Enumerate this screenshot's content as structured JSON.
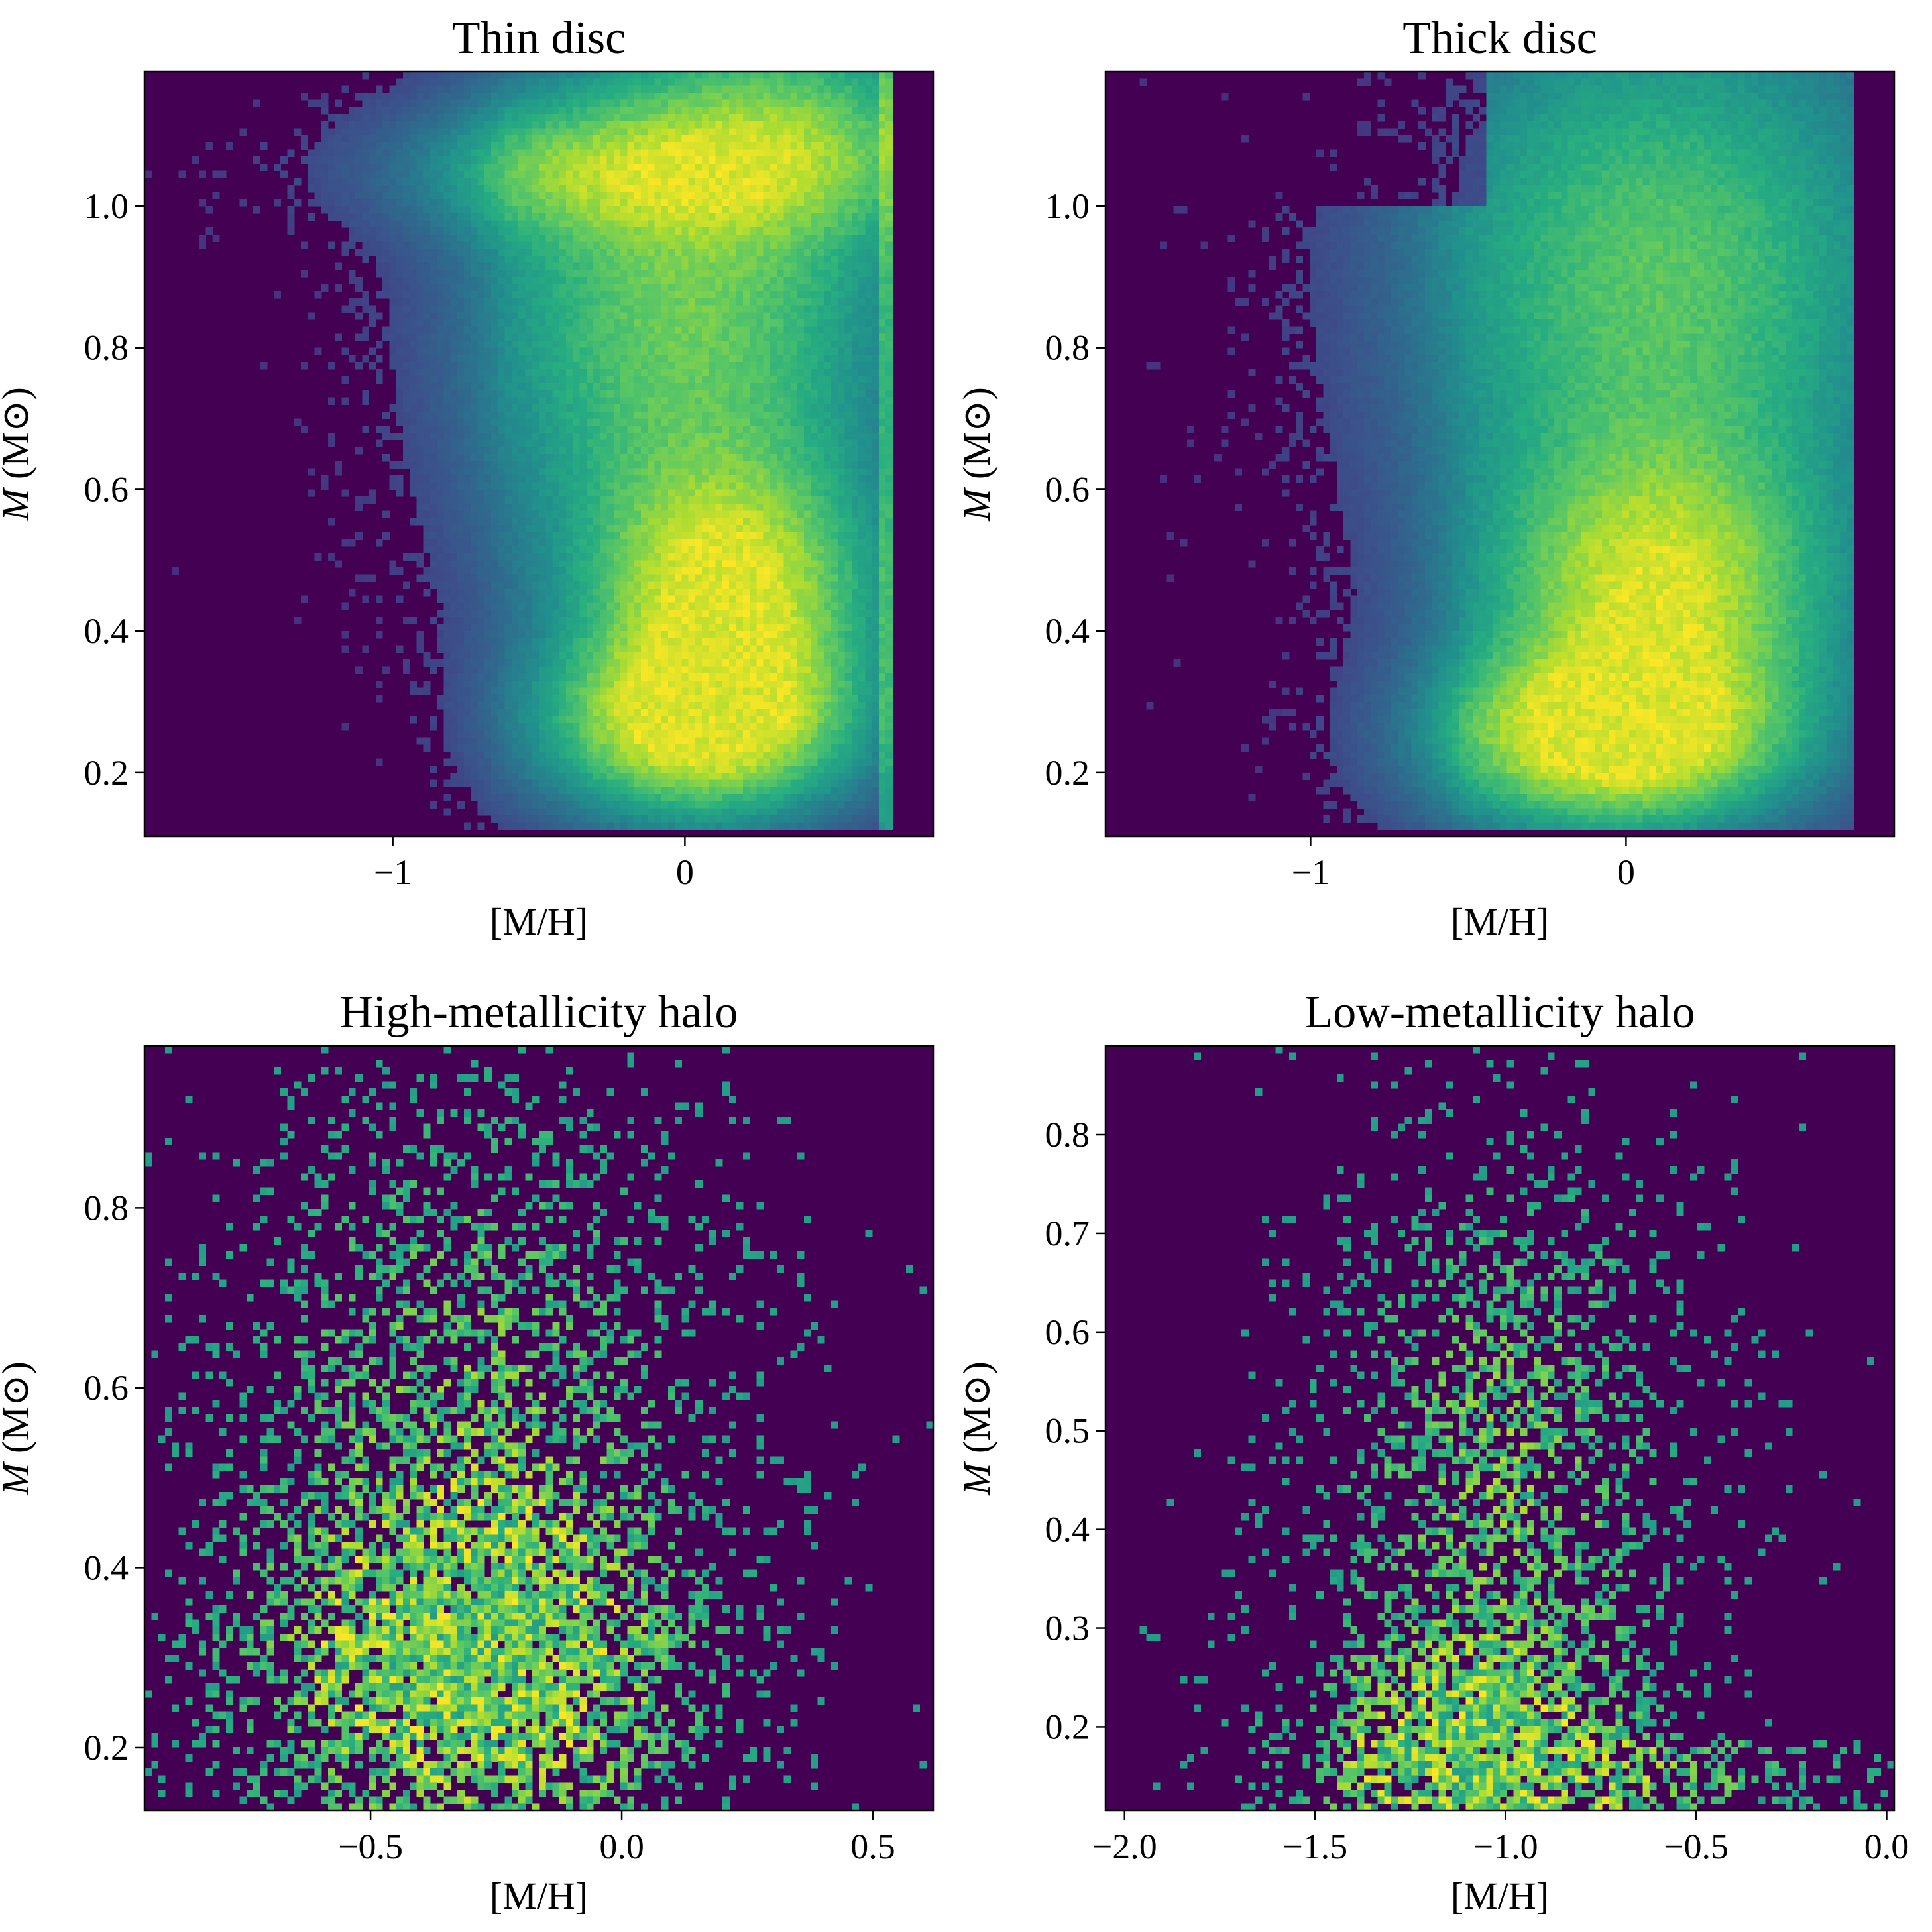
{
  "colors": {
    "background": "#440154",
    "colormap": [
      "#440154",
      "#472c7a",
      "#3b518b",
      "#2c718e",
      "#21908d",
      "#27ad81",
      "#5cc863",
      "#aadc32",
      "#fde725"
    ]
  },
  "chart_data": [
    {
      "type": "heatmap",
      "title": "Thin disc",
      "xlabel": "[M/H]",
      "ylabel": "M (M⊙)",
      "xlim": [
        -1.85,
        0.85
      ],
      "ylim": [
        0.11,
        1.19
      ],
      "xticks": [
        -1,
        0
      ],
      "xtick_labels": [
        "−1",
        "0"
      ],
      "yticks": [
        0.2,
        0.4,
        0.6,
        0.8,
        1.0
      ],
      "ytick_labels": [
        "0.2",
        "0.4",
        "0.6",
        "0.8",
        "1.0"
      ],
      "colormap": "viridis",
      "density_features": [
        {
          "center_x": 0.05,
          "center_y": 0.27,
          "relative_density": 1.0
        },
        {
          "center_x": 0.15,
          "center_y": 0.45,
          "relative_density": 0.85
        },
        {
          "center_x": 0.0,
          "center_y": 0.9,
          "relative_density": 0.6
        },
        {
          "center_x": -0.3,
          "center_y": 1.05,
          "relative_density": 0.45
        },
        {
          "center_x": 0.72,
          "center_y": 0.75,
          "relative_density": 0.6
        }
      ]
    },
    {
      "type": "heatmap",
      "title": "Thick disc",
      "xlabel": "[M/H]",
      "ylabel": "M (M⊙)",
      "xlim": [
        -1.65,
        0.85
      ],
      "ylim": [
        0.11,
        1.19
      ],
      "xticks": [
        -1,
        0
      ],
      "xtick_labels": [
        "−1",
        "0"
      ],
      "yticks": [
        0.2,
        0.4,
        0.6,
        0.8,
        1.0
      ],
      "ytick_labels": [
        "0.2",
        "0.4",
        "0.6",
        "0.8",
        "1.0"
      ],
      "colormap": "viridis",
      "density_features": [
        {
          "center_x": -0.05,
          "center_y": 0.25,
          "relative_density": 1.0
        },
        {
          "center_x": 0.1,
          "center_y": 0.45,
          "relative_density": 0.8
        },
        {
          "center_x": 0.1,
          "center_y": 0.95,
          "relative_density": 0.55
        },
        {
          "center_x": 0.72,
          "center_y": 0.75,
          "relative_density": 0.55
        }
      ]
    },
    {
      "type": "heatmap",
      "title": "High-metallicity halo",
      "xlabel": "[M/H]",
      "ylabel": "M (M⊙)",
      "xlim": [
        -0.95,
        0.62
      ],
      "ylim": [
        0.13,
        0.98
      ],
      "xticks": [
        -0.5,
        0.0,
        0.5
      ],
      "xtick_labels": [
        "−0.5",
        "0.0",
        "0.5"
      ],
      "yticks": [
        0.2,
        0.4,
        0.6,
        0.8
      ],
      "ytick_labels": [
        "0.2",
        "0.4",
        "0.6",
        "0.8"
      ],
      "colormap": "viridis",
      "density_features": [
        {
          "center_x": -0.3,
          "center_y": 0.28,
          "relative_density": 1.0
        },
        {
          "center_x": -0.3,
          "center_y": 0.55,
          "relative_density": 0.6
        },
        {
          "center_x": -0.35,
          "center_y": 0.8,
          "relative_density": 0.35
        }
      ]
    },
    {
      "type": "heatmap",
      "title": "Low-metallicity halo",
      "xlabel": "[M/H]",
      "ylabel": "M (M⊙)",
      "xlim": [
        -2.05,
        0.02
      ],
      "ylim": [
        0.115,
        0.89
      ],
      "xticks": [
        -2.0,
        -1.5,
        -1.0,
        -0.5,
        0.0
      ],
      "xtick_labels": [
        "−2.0",
        "−1.5",
        "−1.0",
        "−0.5",
        "0.0"
      ],
      "yticks": [
        0.2,
        0.3,
        0.4,
        0.5,
        0.6,
        0.7,
        0.8
      ],
      "ytick_labels": [
        "0.2",
        "0.3",
        "0.4",
        "0.5",
        "0.6",
        "0.7",
        "0.8"
      ],
      "colormap": "viridis",
      "density_features": [
        {
          "center_x": -1.1,
          "center_y": 0.17,
          "relative_density": 1.0
        },
        {
          "center_x": -1.0,
          "center_y": 0.4,
          "relative_density": 0.6
        },
        {
          "center_x": -1.0,
          "center_y": 0.7,
          "relative_density": 0.35
        }
      ]
    }
  ]
}
